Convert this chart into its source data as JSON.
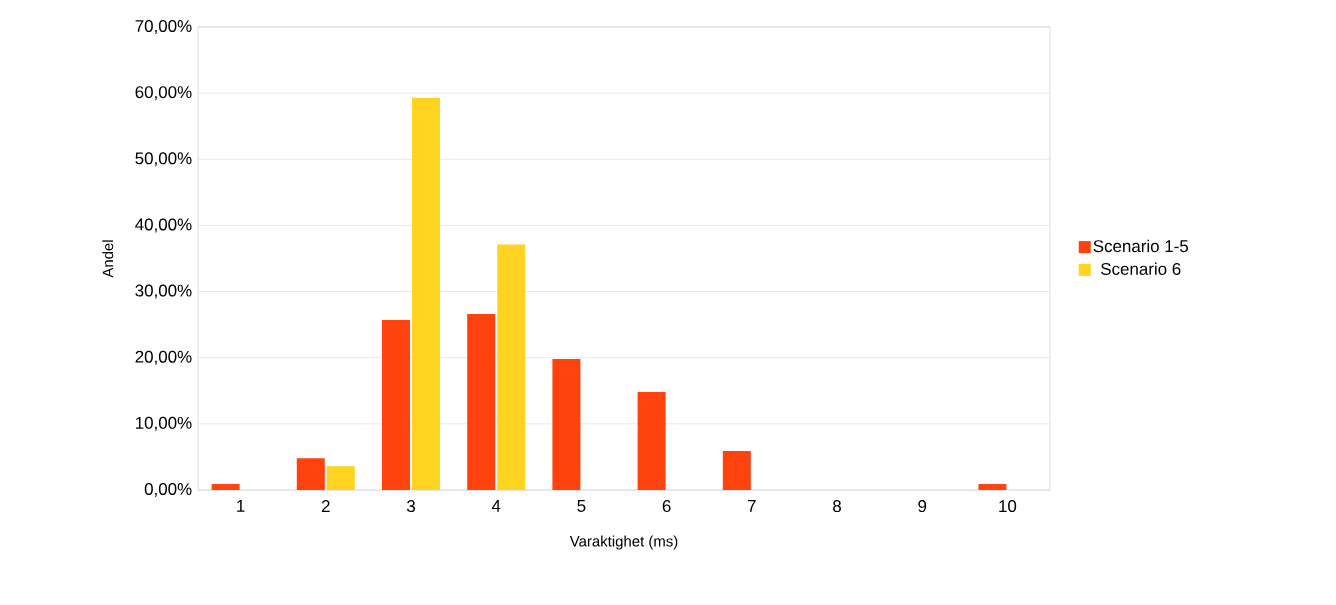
{
  "chart_data": {
    "type": "bar",
    "xlabel": "Varaktighet (ms)",
    "ylabel": "Andel",
    "categories": [
      "1",
      "2",
      "3",
      "4",
      "5",
      "6",
      "7",
      "8",
      "9",
      "10"
    ],
    "series": [
      {
        "name": "Scenario 1-5",
        "color": "#ff420e",
        "values": [
          0.9,
          4.8,
          25.7,
          26.6,
          19.8,
          14.8,
          5.9,
          0,
          0,
          0.9
        ]
      },
      {
        "name": "Scenario 6",
        "color": "#ffd320",
        "values": [
          0,
          3.6,
          59.3,
          37.1,
          0,
          0,
          0,
          0,
          0,
          0
        ]
      }
    ],
    "ylim": [
      0,
      70
    ],
    "yticks": [
      {
        "value": 0,
        "label": "0,00%"
      },
      {
        "value": 10,
        "label": "10,00%"
      },
      {
        "value": 20,
        "label": "20,00%"
      },
      {
        "value": 30,
        "label": "30,00%"
      },
      {
        "value": 40,
        "label": "40,00%"
      },
      {
        "value": 50,
        "label": "50,00%"
      },
      {
        "value": 60,
        "label": "60,00%"
      },
      {
        "value": 70,
        "label": "70,00%"
      }
    ],
    "grid": "y",
    "legend": "right"
  }
}
